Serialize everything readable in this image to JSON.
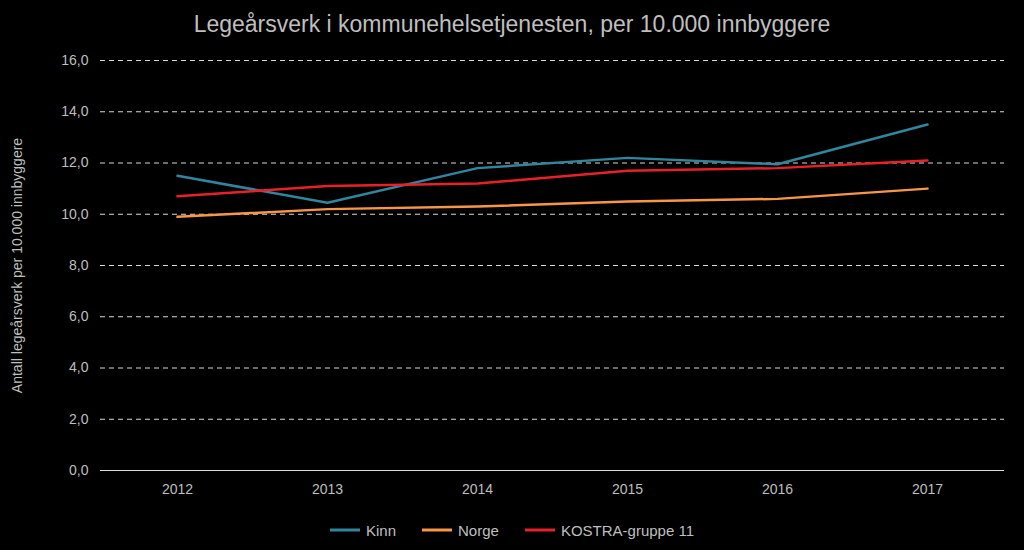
{
  "chart_data": {
    "type": "line",
    "title": "Legeårsverk i kommunehelsetjenesten, per 10.000 innbyggere",
    "y_label": "Antall legeårsverk per 10.000 innbyggere",
    "categories": [
      "2012",
      "2013",
      "2014",
      "2015",
      "2016",
      "2017"
    ],
    "series": [
      {
        "name": "Kinn",
        "color": "#31859c",
        "values": [
          11.5,
          10.45,
          11.8,
          12.2,
          11.95,
          13.5
        ]
      },
      {
        "name": "Norge",
        "color": "#f79646",
        "values": [
          9.9,
          10.2,
          10.3,
          10.5,
          10.6,
          11.0
        ]
      },
      {
        "name": "KOSTRA-gruppe 11",
        "color": "#e8202a",
        "values": [
          10.7,
          11.1,
          11.2,
          11.7,
          11.8,
          12.1
        ]
      }
    ],
    "ylim": [
      0,
      16
    ],
    "yticks": [
      {
        "value": 0,
        "label": "0,0"
      },
      {
        "value": 2,
        "label": "2,0"
      },
      {
        "value": 4,
        "label": "4,0"
      },
      {
        "value": 6,
        "label": "6,0"
      },
      {
        "value": 8,
        "label": "8,0"
      },
      {
        "value": 10,
        "label": "10,0"
      },
      {
        "value": 12,
        "label": "12,0"
      },
      {
        "value": 14,
        "label": "14,0"
      },
      {
        "value": 16,
        "label": "16,0"
      }
    ],
    "grid": true,
    "legend": "bottom"
  }
}
